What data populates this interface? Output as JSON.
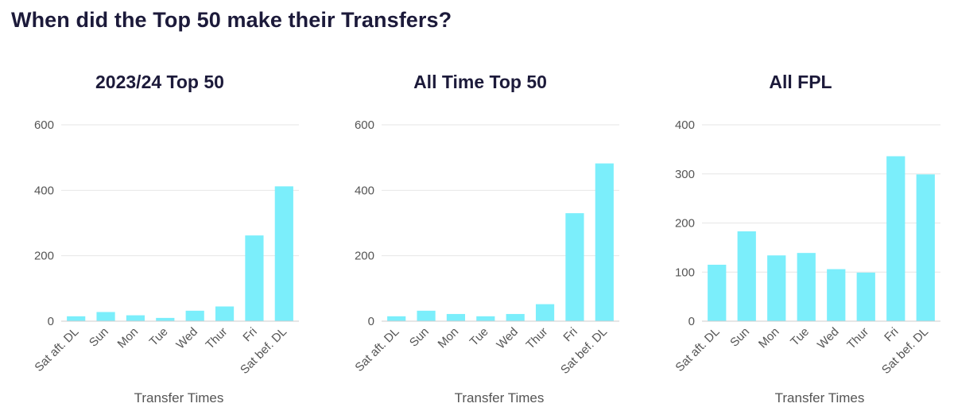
{
  "page": {
    "title": "When did the Top 50 make their Transfers?"
  },
  "colors": {
    "bar": "#7beefb",
    "grid": "#e6e6e6",
    "axis": "#cccccc",
    "tick_text": "#555555",
    "title_text": "#1c1a3a"
  },
  "chart_data": [
    {
      "type": "bar",
      "title": "2023/24 Top 50",
      "xlabel": "Transfer Times",
      "ylabel": "",
      "categories": [
        "Sat aft. DL",
        "Sun",
        "Mon",
        "Tue",
        "Wed",
        "Thur",
        "Fri",
        "Sat bef. DL"
      ],
      "values": [
        15,
        28,
        18,
        10,
        32,
        45,
        262,
        412
      ],
      "ylim": [
        0,
        600
      ],
      "yticks": [
        0,
        200,
        400,
        600
      ],
      "grid": true
    },
    {
      "type": "bar",
      "title": "All Time Top 50",
      "xlabel": "Transfer Times",
      "ylabel": "",
      "categories": [
        "Sat aft. DL",
        "Sun",
        "Mon",
        "Tue",
        "Wed",
        "Thur",
        "Fri",
        "Sat bef. DL"
      ],
      "values": [
        15,
        32,
        22,
        15,
        22,
        52,
        330,
        482
      ],
      "ylim": [
        0,
        600
      ],
      "yticks": [
        0,
        200,
        400,
        600
      ],
      "grid": true
    },
    {
      "type": "bar",
      "title": "All FPL",
      "xlabel": "Transfer Times",
      "ylabel": "",
      "categories": [
        "Sat aft. DL",
        "Sun",
        "Mon",
        "Tue",
        "Wed",
        "Thur",
        "Fri",
        "Sat bef. DL"
      ],
      "values": [
        115,
        183,
        134,
        139,
        106,
        99,
        336,
        299
      ],
      "ylim": [
        0,
        400
      ],
      "yticks": [
        0,
        100,
        200,
        300,
        400
      ],
      "grid": true
    }
  ]
}
